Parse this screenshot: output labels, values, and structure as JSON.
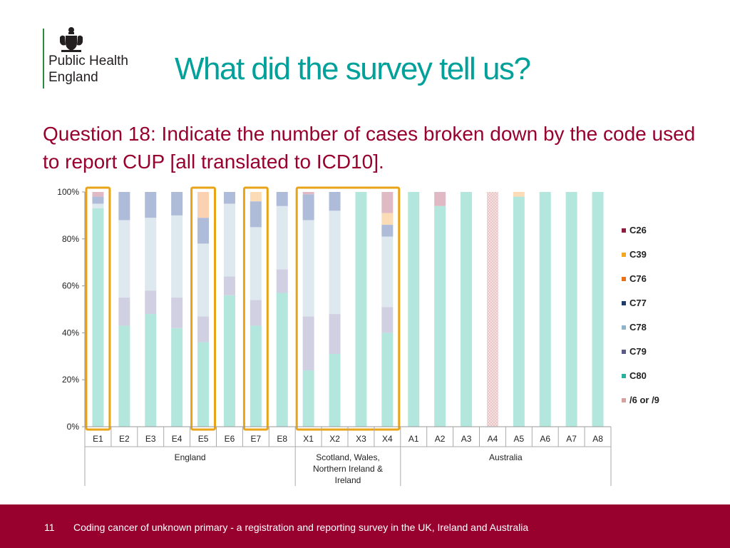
{
  "logo": {
    "icon": "royal-crest-icon",
    "line1": "Public Health",
    "line2": "England"
  },
  "title": "What did the survey tell us?",
  "question": "Question 18: Indicate the number of cases broken down by the code used to report CUP [all translated to ICD10].",
  "colors": {
    "title": "#00a19a",
    "question": "#98002e",
    "footer": "#98002e",
    "highlight": "#e8a317"
  },
  "chart_data": {
    "type": "bar",
    "stacked": true,
    "percent": true,
    "ylim": [
      0,
      100
    ],
    "yticks": [
      "0%",
      "20%",
      "40%",
      "60%",
      "80%",
      "100%"
    ],
    "categories": [
      "E1",
      "E2",
      "E3",
      "E4",
      "E5",
      "E6",
      "E7",
      "E8",
      "X1",
      "X2",
      "X3",
      "X4",
      "A1",
      "A2",
      "A3",
      "A4",
      "A5",
      "A6",
      "A7",
      "A8"
    ],
    "groups": [
      {
        "label": "England",
        "members": [
          "E1",
          "E2",
          "E3",
          "E4",
          "E5",
          "E6",
          "E7",
          "E8"
        ]
      },
      {
        "label": "Scotland, Wales, Northern Ireland & Ireland",
        "members": [
          "X1",
          "X2",
          "X3",
          "X4"
        ]
      },
      {
        "label": "Australia",
        "members": [
          "A1",
          "A2",
          "A3",
          "A4",
          "A5",
          "A6",
          "A7",
          "A8"
        ]
      }
    ],
    "highlighted": [
      "E1",
      "E5",
      "E7",
      "X1",
      "X2",
      "X3",
      "X4"
    ],
    "legend_position": "right",
    "legend": [
      "C26",
      "C39",
      "C76",
      "C77",
      "C78",
      "C79",
      "C80",
      "/6 or /9"
    ],
    "series": [
      {
        "name": "C80",
        "color": "#b3e6dd",
        "values": [
          93,
          43,
          48,
          42,
          36,
          56,
          43,
          57,
          24,
          31,
          100,
          40,
          100,
          94,
          100,
          0,
          98,
          100,
          100,
          100
        ]
      },
      {
        "name": "C79",
        "color": "#d0d0e2",
        "values": [
          0,
          12,
          10,
          13,
          11,
          8,
          11,
          10,
          23,
          17,
          0,
          11,
          0,
          0,
          0,
          0,
          0,
          0,
          0,
          0
        ]
      },
      {
        "name": "C78",
        "color": "#dde9ef",
        "values": [
          2,
          33,
          31,
          35,
          31,
          31,
          31,
          27,
          41,
          44,
          0,
          30,
          0,
          0,
          0,
          0,
          0,
          0,
          0,
          0
        ]
      },
      {
        "name": "C77",
        "color": "#aebbd9",
        "values": [
          3,
          12,
          11,
          10,
          11,
          5,
          11,
          6,
          11,
          8,
          0,
          5,
          0,
          0,
          0,
          0,
          0,
          0,
          0,
          0
        ]
      },
      {
        "name": "C76",
        "color": "#fbd2b1",
        "values": [
          0,
          0,
          0,
          0,
          11,
          0,
          0,
          0,
          0,
          0,
          0,
          0,
          0,
          0,
          0,
          0,
          0,
          0,
          0,
          0
        ]
      },
      {
        "name": "C39",
        "color": "#fbdcb6",
        "values": [
          0,
          0,
          0,
          0,
          0,
          0,
          4,
          0,
          0,
          0,
          0,
          5,
          0,
          0,
          0,
          0,
          2,
          0,
          0,
          0
        ]
      },
      {
        "name": "C26",
        "color": "#dfbac4",
        "values": [
          2,
          0,
          0,
          0,
          0,
          0,
          0,
          0,
          1,
          0,
          0,
          9,
          0,
          6,
          0,
          0,
          0,
          0,
          0,
          0
        ]
      },
      {
        "name": "/6 or /9",
        "color": "#f2d4d4",
        "values": [
          0,
          0,
          0,
          0,
          0,
          0,
          0,
          0,
          0,
          0,
          0,
          0,
          0,
          0,
          0,
          100,
          0,
          0,
          0,
          0
        ]
      }
    ]
  },
  "legend_items": [
    {
      "label": "C26",
      "color": "#8b1e3f"
    },
    {
      "label": "C39",
      "color": "#f5a623"
    },
    {
      "label": "C76",
      "color": "#e8711a"
    },
    {
      "label": "C77",
      "color": "#1f3a6e"
    },
    {
      "label": "C78",
      "color": "#8fb4c9"
    },
    {
      "label": "C79",
      "color": "#5b5b8a"
    },
    {
      "label": "C80",
      "color": "#2bb29c"
    },
    {
      "label": "/6 or /9",
      "color": "#d9a0a0"
    }
  ],
  "footer": {
    "page_number": "11",
    "text": "Coding cancer of unknown primary - a registration and reporting survey in the UK, Ireland and Australia"
  }
}
